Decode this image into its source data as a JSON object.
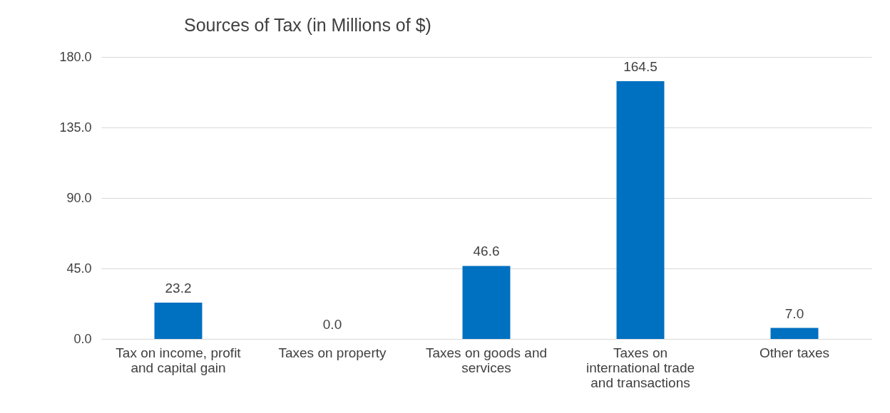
{
  "chart_data": {
    "type": "bar",
    "title": "Sources of Tax (in Millions of $)",
    "categories": [
      "Tax on income, profit and capital gain",
      "Taxes on property",
      "Taxes on goods and services",
      "Taxes on international trade and transactions",
      "Other taxes"
    ],
    "values": [
      23.2,
      0.0,
      46.6,
      164.5,
      7.0
    ],
    "value_labels": [
      "23.2",
      "0.0",
      "46.6",
      "164.5",
      "7.0"
    ],
    "color": "#0070c0",
    "ylim": [
      0,
      180
    ],
    "yticks": [
      {
        "value": 0,
        "label": "0.0"
      },
      {
        "value": 45,
        "label": "45.0"
      },
      {
        "value": 90,
        "label": "90.0"
      },
      {
        "value": 135,
        "label": "135.0"
      },
      {
        "value": 180,
        "label": "180.0"
      }
    ],
    "grid": "y"
  }
}
